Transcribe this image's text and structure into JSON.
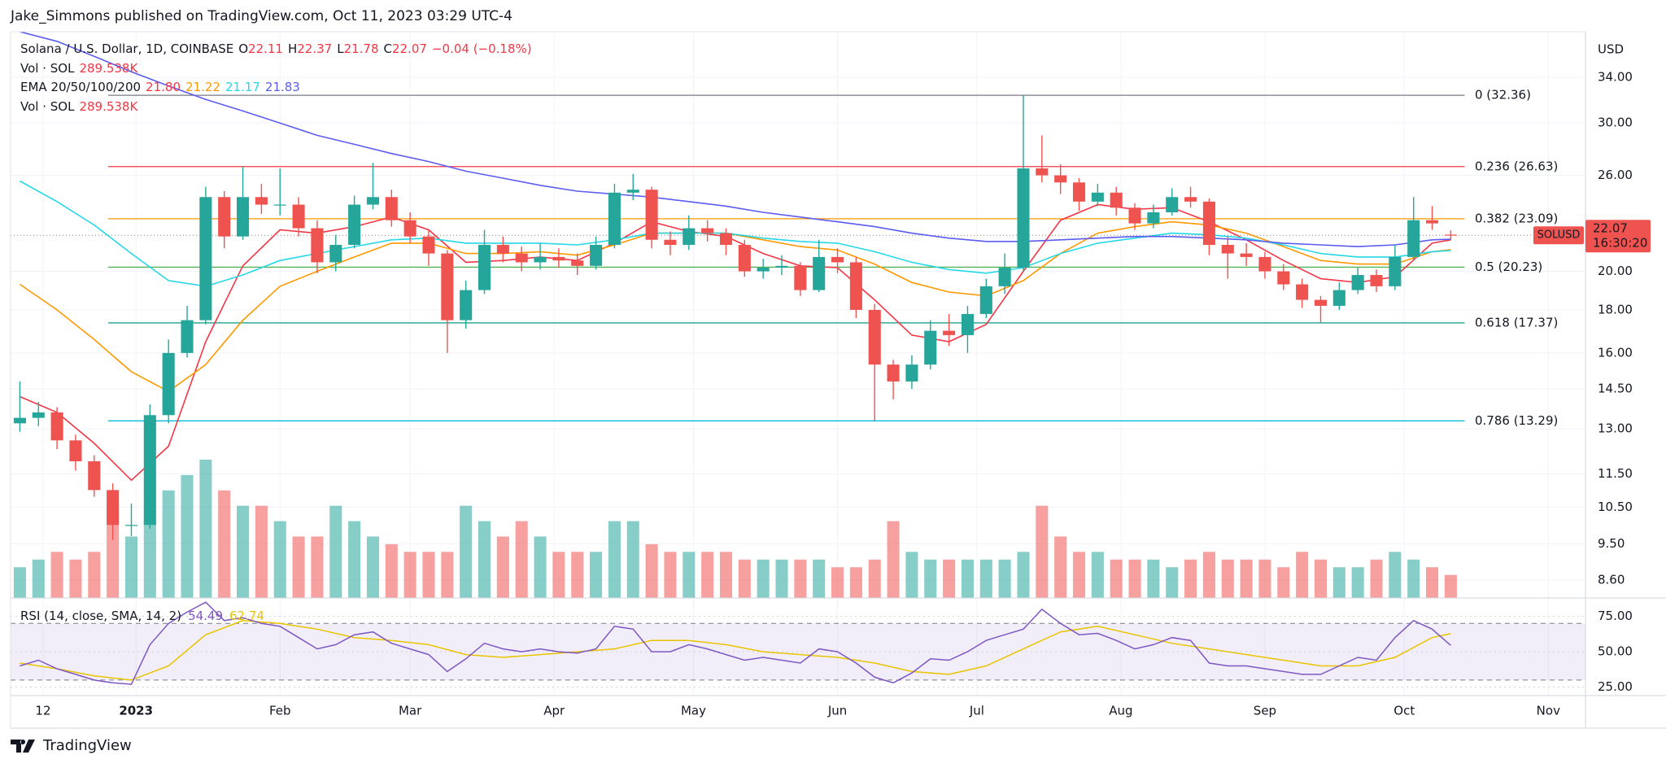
{
  "header": "Jake_Simmons published on TradingView.com, Oct 11, 2023 03:29 UTC-4",
  "footer": "TradingView",
  "chart_data": {
    "type": "candlestick",
    "title": "Solana / U.S. Dollar, 1D, COINBASE",
    "ohlc_letters": [
      "O",
      "H",
      "L",
      "C"
    ],
    "change": "−0.04 (−0.18%)",
    "volume_legend": {
      "name": "Vol · SOL",
      "value": "289.538K"
    },
    "currency": "USD",
    "symbol": "SOLUSD",
    "countdown": "16:30:20",
    "log_scale": true,
    "grid": true,
    "up_color": "#26a69a",
    "down_color": "#ef5350",
    "x": [
      -25,
      -21,
      -17,
      -13,
      -9,
      -5,
      -1,
      3,
      7,
      11,
      15,
      19,
      23,
      27,
      31,
      35,
      39,
      43,
      47,
      51,
      55,
      59,
      63,
      67,
      71,
      75,
      79,
      83,
      87,
      91,
      95,
      99,
      103,
      107,
      111,
      115,
      119,
      123,
      127,
      131,
      135,
      139,
      143,
      147,
      151,
      155,
      159,
      163,
      167,
      171,
      175,
      179,
      183,
      187,
      191,
      195,
      199,
      203,
      207,
      211,
      215,
      219,
      223,
      227,
      231,
      235,
      239,
      243,
      247,
      251,
      255,
      259,
      263,
      267,
      271,
      275,
      279,
      283
    ],
    "open": [
      13.2,
      13.4,
      13.6,
      12.6,
      11.9,
      11.0,
      10.0,
      10.0,
      13.5,
      16.0,
      17.5,
      24.5,
      22.0,
      24.5,
      24.0,
      24.0,
      22.5,
      20.5,
      21.5,
      24.0,
      24.5,
      23.0,
      22.0,
      21.0,
      17.5,
      19.0,
      21.5,
      21.0,
      20.5,
      20.8,
      20.6,
      20.3,
      21.5,
      24.8,
      25.0,
      21.8,
      21.5,
      22.5,
      22.2,
      21.5,
      20.0,
      20.2,
      20.3,
      19.0,
      20.8,
      20.5,
      18.0,
      15.5,
      14.8,
      15.5,
      17.0,
      16.8,
      17.8,
      19.2,
      20.2,
      26.5,
      26.0,
      25.5,
      24.2,
      24.8,
      23.8,
      22.8,
      23.5,
      24.5,
      24.2,
      21.5,
      21.0,
      20.8,
      20.0,
      19.3,
      18.5,
      18.2,
      19.0,
      19.8,
      19.2,
      20.8,
      23.0,
      22.11
    ],
    "high": [
      14.8,
      14.0,
      13.8,
      12.8,
      12.1,
      11.2,
      10.6,
      13.9,
      16.6,
      18.2,
      25.2,
      24.9,
      26.6,
      25.4,
      26.5,
      24.5,
      23.0,
      22.1,
      24.6,
      26.9,
      25.0,
      23.5,
      22.4,
      21.2,
      19.5,
      22.4,
      22.0,
      21.4,
      21.6,
      21.3,
      21.0,
      22.0,
      25.4,
      26.1,
      25.2,
      22.3,
      23.3,
      23.0,
      22.5,
      21.8,
      20.7,
      20.9,
      20.5,
      21.8,
      21.3,
      20.8,
      18.3,
      15.7,
      15.9,
      17.5,
      17.8,
      18.2,
      19.6,
      21.0,
      32.36,
      29.0,
      26.8,
      25.8,
      25.4,
      25.2,
      24.1,
      24.0,
      25.1,
      25.2,
      24.4,
      22.0,
      21.6,
      21.1,
      20.4,
      19.6,
      18.7,
      19.4,
      20.2,
      20.1,
      21.5,
      24.5,
      23.9,
      22.37
    ],
    "low": [
      12.9,
      13.1,
      12.3,
      11.6,
      10.8,
      9.6,
      9.7,
      9.9,
      13.2,
      15.8,
      17.3,
      21.3,
      21.8,
      23.4,
      23.3,
      22.0,
      19.9,
      20.0,
      21.3,
      23.7,
      22.6,
      21.6,
      20.3,
      16.0,
      17.1,
      18.8,
      20.5,
      20.0,
      20.1,
      20.2,
      19.8,
      20.1,
      21.3,
      24.3,
      21.3,
      20.9,
      21.2,
      21.7,
      20.9,
      19.7,
      19.6,
      19.8,
      18.7,
      18.9,
      19.9,
      17.6,
      13.29,
      14.1,
      14.5,
      15.3,
      16.3,
      16.0,
      17.6,
      18.8,
      20.0,
      25.5,
      24.7,
      23.6,
      23.9,
      23.3,
      22.4,
      22.5,
      23.3,
      23.8,
      20.9,
      19.6,
      20.3,
      19.6,
      19.0,
      18.1,
      17.4,
      18.0,
      18.8,
      18.9,
      19.0,
      20.6,
      22.4,
      21.78
    ],
    "close": [
      13.4,
      13.6,
      12.6,
      11.9,
      11.0,
      10.0,
      10.0,
      13.5,
      16.0,
      17.5,
      24.5,
      22.0,
      24.5,
      24.0,
      24.0,
      22.5,
      20.5,
      21.5,
      24.0,
      24.5,
      23.0,
      22.0,
      21.0,
      17.5,
      19.0,
      21.5,
      21.0,
      20.5,
      20.8,
      20.6,
      20.3,
      21.5,
      24.8,
      25.0,
      21.8,
      21.5,
      22.5,
      22.2,
      21.5,
      20.0,
      20.2,
      20.3,
      19.0,
      20.8,
      20.5,
      18.0,
      15.5,
      14.8,
      15.5,
      17.0,
      16.8,
      17.8,
      19.2,
      20.2,
      26.5,
      26.0,
      25.5,
      24.2,
      24.8,
      23.8,
      22.8,
      23.5,
      24.5,
      24.2,
      21.5,
      21.0,
      20.8,
      20.0,
      19.3,
      18.5,
      18.2,
      19.0,
      19.8,
      19.2,
      20.8,
      23.0,
      22.8,
      22.07
    ],
    "volume": [
      2,
      2.5,
      3,
      2.5,
      3,
      6,
      4,
      5,
      7,
      8,
      9,
      7,
      6,
      6,
      5,
      4,
      4,
      6,
      5,
      4,
      3.5,
      3,
      3,
      3,
      6,
      5,
      4,
      5,
      4,
      3,
      3,
      3,
      5,
      5,
      3.5,
      3,
      3,
      3,
      3,
      2.5,
      2.5,
      2.5,
      2.5,
      2.5,
      2,
      2,
      2.5,
      5,
      3,
      2.5,
      2.5,
      2.5,
      2.5,
      2.5,
      3,
      6,
      4,
      3,
      3,
      2.5,
      2.5,
      2.5,
      2,
      2.5,
      3,
      2.5,
      2.5,
      2.5,
      2,
      3,
      2.5,
      2,
      2,
      2.5,
      3,
      2.5,
      2,
      1.5
    ],
    "xlim": [
      -27,
      312
    ],
    "xticks": [
      {
        "value": -20,
        "label": "12"
      },
      {
        "value": 0,
        "label": "2023"
      },
      {
        "value": 31,
        "label": "Feb"
      },
      {
        "value": 59,
        "label": "Mar"
      },
      {
        "value": 90,
        "label": "Apr"
      },
      {
        "value": 120,
        "label": "May"
      },
      {
        "value": 151,
        "label": "Jun"
      },
      {
        "value": 181,
        "label": "Jul"
      },
      {
        "value": 212,
        "label": "Aug"
      },
      {
        "value": 243,
        "label": "Sep"
      },
      {
        "value": 273,
        "label": "Oct"
      },
      {
        "value": 304,
        "label": "Nov"
      }
    ],
    "ylim": [
      8.19,
      38.5
    ],
    "yticks": [
      {
        "value": 34,
        "label": "34.00"
      },
      {
        "value": 30,
        "label": "30.00"
      },
      {
        "value": 26,
        "label": "26.00"
      },
      {
        "value": 20,
        "label": "20.00"
      },
      {
        "value": 18,
        "label": "18.00"
      },
      {
        "value": 16,
        "label": "16.00"
      },
      {
        "value": 14.5,
        "label": "14.50"
      },
      {
        "value": 13,
        "label": "13.00"
      },
      {
        "value": 11.5,
        "label": "11.50"
      },
      {
        "value": 10.5,
        "label": "10.50"
      },
      {
        "value": 9.5,
        "label": "9.50"
      },
      {
        "value": 8.6,
        "label": "8.60"
      }
    ],
    "ema_label": "EMA 20/50/100/200",
    "ema_x": [
      -25,
      -17,
      -9,
      -1,
      7,
      15,
      23,
      31,
      39,
      47,
      55,
      63,
      71,
      79,
      87,
      95,
      103,
      111,
      119,
      127,
      135,
      143,
      151,
      159,
      167,
      175,
      183,
      191,
      199,
      207,
      215,
      223,
      231,
      239,
      247,
      255,
      263,
      271,
      279,
      283
    ],
    "ema": [
      {
        "color": "#f23645",
        "values": [
          14.2,
          13.6,
          12.5,
          11.3,
          12.4,
          16.5,
          20.3,
          22.4,
          22.2,
          22.6,
          23.2,
          22.4,
          20.5,
          20.6,
          20.8,
          20.6,
          21.6,
          22.9,
          22.3,
          22.0,
          21.0,
          20.3,
          20.2,
          18.5,
          16.8,
          16.5,
          17.3,
          20.0,
          23.0,
          24.0,
          23.7,
          23.8,
          22.9,
          21.8,
          20.6,
          19.6,
          19.4,
          19.7,
          21.6,
          21.8
        ],
        "value_labels": [
          null,
          null,
          null,
          null,
          null,
          null,
          null,
          null,
          null,
          null,
          null,
          null,
          null,
          null,
          null,
          null,
          null,
          null,
          null,
          null,
          null,
          null,
          null,
          null,
          null,
          null,
          null,
          null,
          null,
          null,
          null,
          null,
          null,
          null,
          null,
          null,
          null,
          null,
          null,
          "21.80"
        ]
      },
      {
        "color": "#ff9800",
        "values": [
          19.3,
          18.0,
          16.6,
          15.2,
          14.4,
          15.5,
          17.5,
          19.2,
          20.0,
          20.8,
          21.6,
          21.6,
          21.0,
          21.0,
          21.1,
          20.9,
          21.5,
          22.2,
          22.2,
          22.2,
          21.8,
          21.4,
          21.2,
          20.4,
          19.4,
          18.9,
          18.7,
          19.5,
          21.0,
          22.2,
          22.6,
          22.9,
          22.7,
          22.2,
          21.4,
          20.6,
          20.4,
          20.4,
          21.1,
          21.22
        ]
      },
      {
        "color": "#26d7e6",
        "values": [
          25.6,
          24.2,
          22.7,
          21.0,
          19.5,
          19.2,
          19.8,
          20.6,
          21.0,
          21.4,
          21.8,
          21.9,
          21.6,
          21.6,
          21.6,
          21.5,
          21.8,
          22.2,
          22.2,
          22.2,
          21.9,
          21.7,
          21.6,
          21.1,
          20.5,
          20.1,
          19.9,
          20.2,
          21.0,
          21.6,
          21.9,
          22.2,
          22.1,
          21.9,
          21.5,
          21.0,
          20.8,
          20.8,
          21.1,
          21.17
        ]
      },
      {
        "color": "#5b5cf0",
        "values": [
          38.5,
          37.5,
          36.0,
          34.5,
          33.2,
          32.0,
          31.0,
          30.0,
          29.0,
          28.3,
          27.6,
          27.0,
          26.3,
          25.8,
          25.3,
          24.9,
          24.7,
          24.5,
          24.2,
          23.9,
          23.5,
          23.2,
          22.9,
          22.6,
          22.2,
          21.9,
          21.7,
          21.7,
          21.8,
          21.9,
          22.0,
          22.0,
          21.9,
          21.8,
          21.6,
          21.5,
          21.4,
          21.5,
          21.8,
          21.83
        ]
      }
    ],
    "fib_x": [
      -6,
      286
    ],
    "fib": [
      {
        "value": 32.36,
        "label": "0 (32.36)",
        "color": "#787b86"
      },
      {
        "value": 26.63,
        "label": "0.236 (26.63)",
        "color": "#f23645"
      },
      {
        "value": 23.09,
        "label": "0.382 (23.09)",
        "color": "#ff9800"
      },
      {
        "value": 20.23,
        "label": "0.5 (20.23)",
        "color": "#4caf50"
      },
      {
        "value": 17.37,
        "label": "0.618 (17.37)",
        "color": "#089981"
      },
      {
        "value": 13.29,
        "label": "0.786 (13.29)",
        "color": "#00bcd4"
      }
    ],
    "rsi": {
      "label": "RSI (14, close, SMA, 14, 2)",
      "ylim": [
        19,
        88
      ],
      "yticks": [
        {
          "value": 75,
          "label": "75.00"
        },
        {
          "value": 50,
          "label": "50.00"
        },
        {
          "value": 25,
          "label": "25.00"
        }
      ],
      "bands": [
        70,
        30
      ],
      "color": "#7e57c2",
      "values": [
        40,
        44,
        38,
        34,
        30,
        28,
        27,
        55,
        70,
        78,
        85,
        72,
        74,
        70,
        68,
        60,
        52,
        55,
        62,
        64,
        56,
        52,
        48,
        36,
        45,
        56,
        52,
        50,
        52,
        50,
        49,
        52,
        68,
        66,
        50,
        50,
        55,
        52,
        48,
        44,
        46,
        44,
        42,
        52,
        50,
        42,
        32,
        28,
        35,
        45,
        44,
        50,
        58,
        62,
        66,
        80,
        70,
        62,
        63,
        58,
        52,
        55,
        60,
        58,
        42,
        40,
        40,
        38,
        36,
        34,
        34,
        40,
        46,
        44,
        60,
        72,
        66,
        54.49
      ],
      "sma": {
        "color": "#e8c400",
        "values": [
          42,
          38,
          33,
          30,
          40,
          62,
          72,
          70,
          66,
          60,
          58,
          55,
          48,
          46,
          48,
          50,
          52,
          58,
          58,
          55,
          50,
          48,
          46,
          42,
          36,
          34,
          40,
          52,
          64,
          68,
          62,
          56,
          52,
          48,
          44,
          40,
          40,
          46,
          60,
          62.74
        ]
      }
    }
  }
}
